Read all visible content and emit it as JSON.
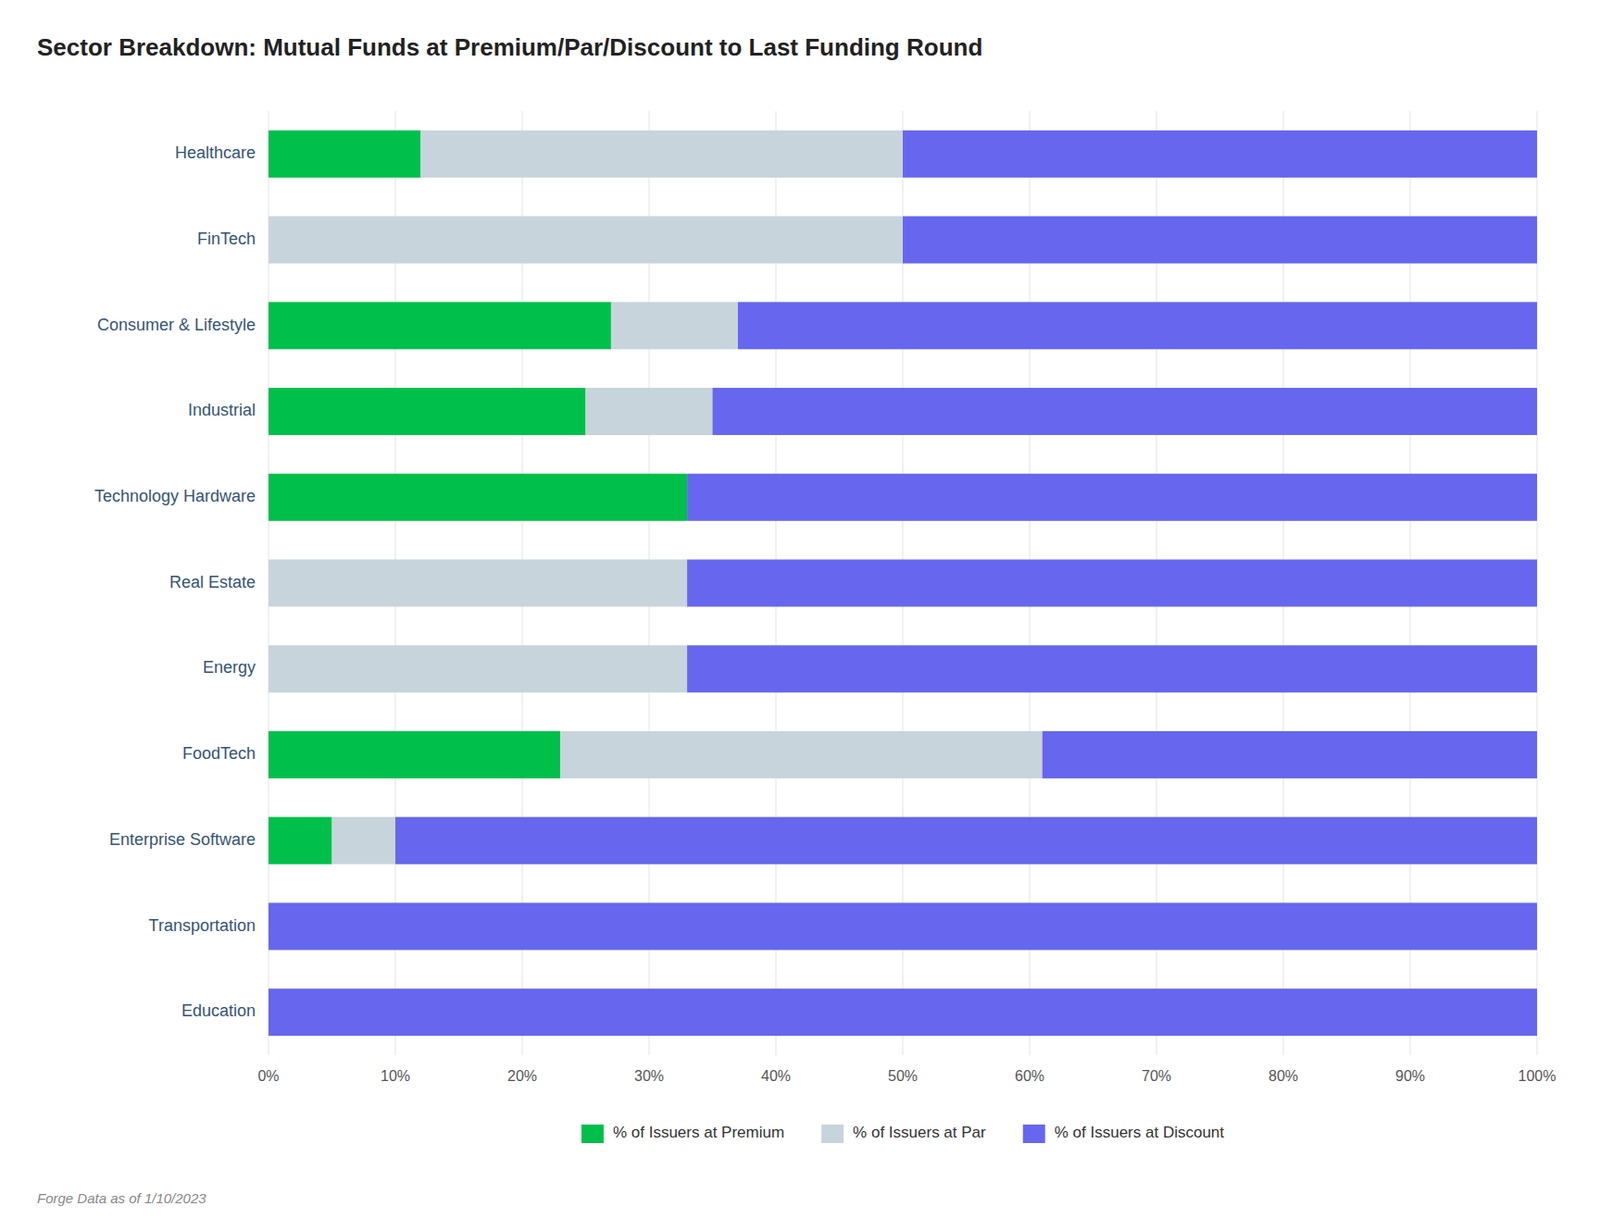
{
  "chart_data": {
    "type": "bar",
    "orientation": "horizontal",
    "stacked": true,
    "title": "Sector Breakdown: Mutual Funds at Premium/Par/Discount to Last Funding Round",
    "categories": [
      "Education",
      "Transportation",
      "Enterprise Software",
      "FoodTech",
      "Energy",
      "Real Estate",
      "Technology Hardware",
      "Industrial",
      "Consumer & Lifestyle",
      "FinTech",
      "Healthcare"
    ],
    "series": [
      {
        "name": "% of Issuers at Premium",
        "color": "#00c04b",
        "values": [
          0,
          0,
          5,
          23,
          0,
          0,
          33,
          25,
          27,
          0,
          12
        ]
      },
      {
        "name": "% of Issuers at Par",
        "color": "#c8d4dc",
        "values": [
          0,
          0,
          5,
          38,
          33,
          33,
          0,
          10,
          10,
          50,
          38
        ]
      },
      {
        "name": "% of Issuers at Discount",
        "color": "#6666ee",
        "values": [
          100,
          100,
          90,
          39,
          67,
          67,
          67,
          65,
          63,
          50,
          50
        ]
      }
    ],
    "xlim": [
      0,
      100
    ],
    "xticks": [
      {
        "value": 0,
        "label": "0%"
      },
      {
        "value": 10,
        "label": "10%"
      },
      {
        "value": 20,
        "label": "20%"
      },
      {
        "value": 30,
        "label": "30%"
      },
      {
        "value": 40,
        "label": "40%"
      },
      {
        "value": 50,
        "label": "50%"
      },
      {
        "value": 60,
        "label": "60%"
      },
      {
        "value": 70,
        "label": "70%"
      },
      {
        "value": 80,
        "label": "80%"
      },
      {
        "value": 90,
        "label": "90%"
      },
      {
        "value": 100,
        "label": "100%"
      }
    ],
    "grid": true,
    "legend": "bottom",
    "annotations": [
      "Forge Data as of 1/10/2023"
    ]
  }
}
